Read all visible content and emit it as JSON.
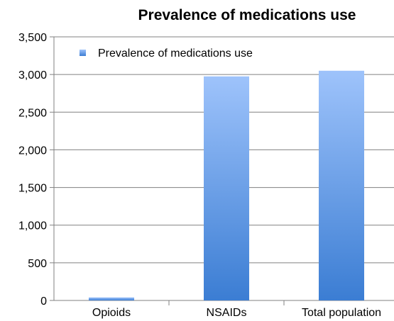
{
  "chart_data": {
    "type": "bar",
    "title": "Prevalence of medications use",
    "categories": [
      "Opioids",
      "NSAIDs",
      "Total population"
    ],
    "series": [
      {
        "name": "Prevalence of medications use",
        "values": [
          40,
          2975,
          3050
        ]
      }
    ],
    "ylim": [
      0,
      3500
    ],
    "yticks": [
      "0",
      "500",
      "1,000",
      "1,500",
      "2,000",
      "2,500",
      "3,000",
      "3,500"
    ],
    "ytick_values": [
      0,
      500,
      1000,
      1500,
      2000,
      2500,
      3000,
      3500
    ],
    "grid": true,
    "legend_position": "top-left",
    "colors": {
      "bar_top": "#9ec3fb",
      "bar_bottom": "#3b7dd3",
      "grid": "#808080"
    }
  }
}
